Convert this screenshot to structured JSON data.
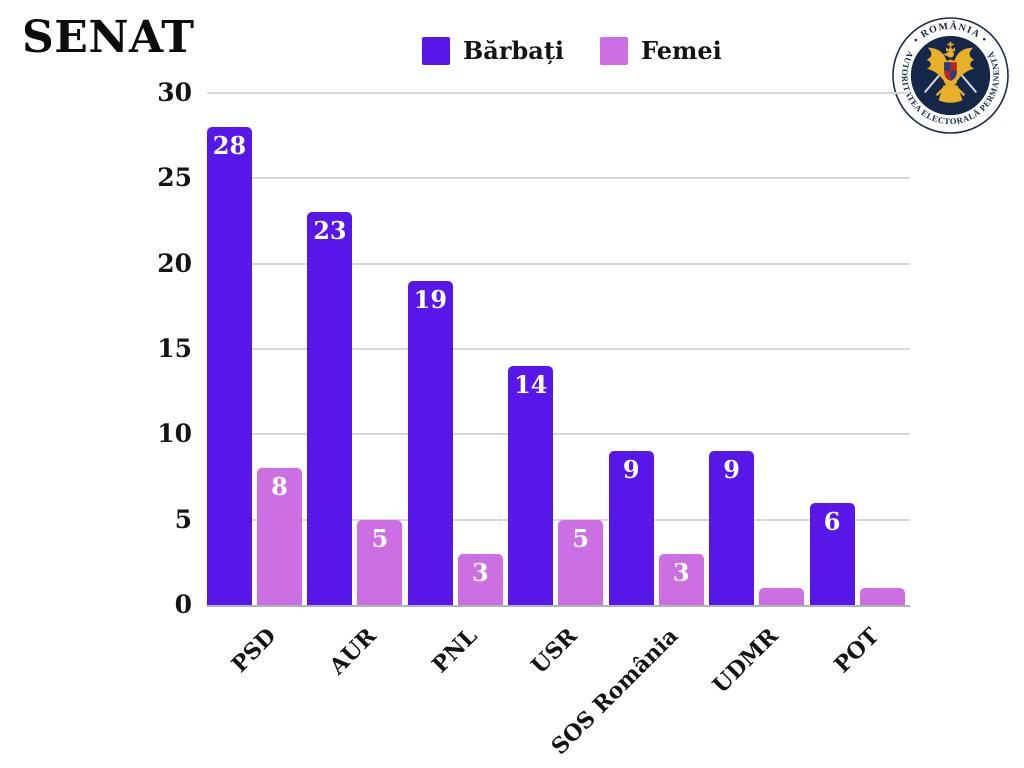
{
  "title": "SENAT",
  "legend": {
    "items": [
      {
        "label": "Bărbați",
        "color": "#5617e8"
      },
      {
        "label": "Femei",
        "color": "#cb6fe3"
      }
    ]
  },
  "logo": {
    "ring_text_top": "• ROMÂNIA •",
    "ring_text_bottom": "AUTORITATEA ELECTORALĂ PERMANENTĂ",
    "navy": "#16284a",
    "gold": "#e8b02a",
    "shield_red": "#b3262c",
    "shield_blue": "#27407c"
  },
  "chart_data": {
    "type": "bar",
    "title": "SENAT",
    "categories": [
      "PSD",
      "AUR",
      "PNL",
      "USR",
      "SOS România",
      "UDMR",
      "POT"
    ],
    "series": [
      {
        "name": "Bărbați",
        "color": "#5617e8",
        "values": [
          28,
          23,
          19,
          14,
          9,
          9,
          6
        ]
      },
      {
        "name": "Femei",
        "color": "#cb6fe3",
        "values": [
          8,
          5,
          3,
          5,
          3,
          1,
          1
        ]
      }
    ],
    "ylim": [
      0,
      30
    ],
    "yticks": [
      0,
      5,
      10,
      15,
      20,
      25,
      30
    ],
    "grid": true,
    "legend_position": "top-center",
    "bar_labels": true,
    "bar_label_color": "#ffffff",
    "bar_label_min": 2
  }
}
